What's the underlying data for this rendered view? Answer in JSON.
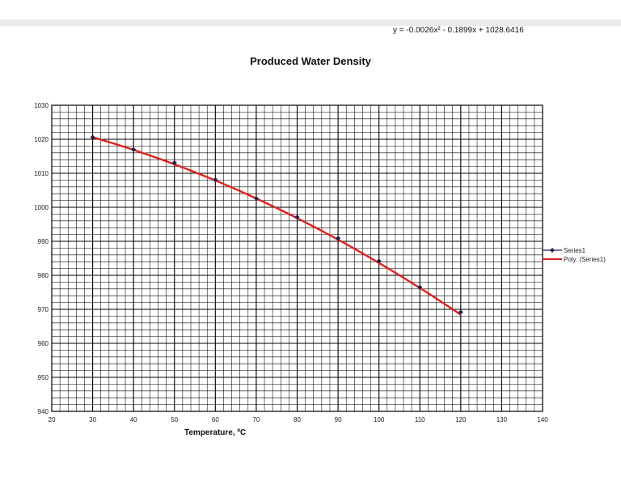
{
  "chart_data": {
    "type": "scatter",
    "title": "Produced Water Density",
    "xlabel": "Temperature, ºC",
    "ylabel": "",
    "equation": "y = -0.0026x² - 0.1899x + 1028.6416",
    "xlim": [
      20,
      140
    ],
    "ylim": [
      940,
      1030
    ],
    "x_ticks": [
      20,
      30,
      40,
      50,
      60,
      70,
      80,
      90,
      100,
      110,
      120,
      130,
      140
    ],
    "y_ticks": [
      940,
      950,
      960,
      970,
      980,
      990,
      1000,
      1010,
      1020,
      1030
    ],
    "grid": true,
    "legend_position": "right",
    "series": [
      {
        "name": "Series1",
        "kind": "markers",
        "color": "#1a1f4d",
        "x": [
          30,
          40,
          50,
          60,
          70,
          80,
          90,
          100,
          110,
          120
        ],
        "y": [
          1020.6,
          1017.0,
          1013.1,
          1008.1,
          1002.6,
          997.1,
          990.9,
          984.2,
          976.5,
          969.2
        ]
      },
      {
        "name": "Poly. (Series1)",
        "kind": "trendline",
        "color": "#e0201b",
        "coefficients": [
          -0.0026,
          -0.1899,
          1028.6416
        ]
      }
    ]
  }
}
